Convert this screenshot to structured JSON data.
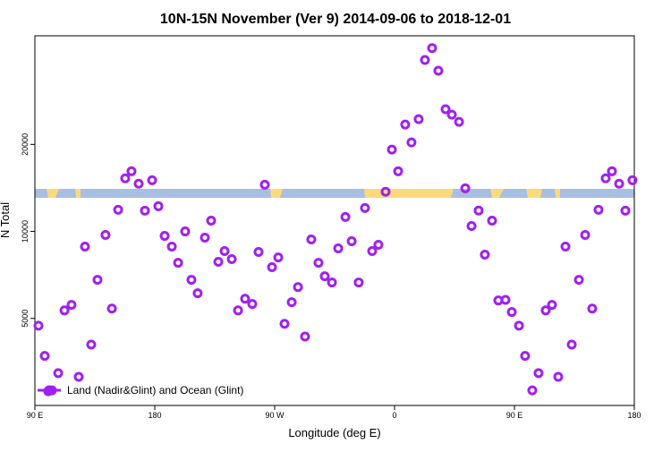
{
  "chart_data": {
    "type": "scatter",
    "title": "10N-15N November (Ver 9)   2014-09-06 to 2018-12-01",
    "xlabel": "Longitude (deg E)",
    "ylabel": "N Total",
    "log_y": true,
    "legend": "bottom-left",
    "xlim": [
      90,
      540
    ],
    "ylim": [
      2500,
      47500
    ],
    "xticks": [
      {
        "value": 90,
        "label": "90 E"
      },
      180,
      {
        "value": 270,
        "label": "90 W"
      },
      {
        "value": 360,
        "label": "0"
      },
      {
        "value": 450,
        "label": "90 E"
      },
      {
        "value": 540,
        "label": "180"
      }
    ],
    "yticks": [
      5000,
      10000,
      20000
    ],
    "series": [
      {
        "name": "Land (Nadir&Glint) and Ocean (Glint)",
        "color": "#a020f0",
        "x": [
          92.7,
          97.4,
          100,
          102.8,
          107.5,
          112.2,
          117.5,
          122.9,
          127.6,
          132.3,
          137,
          143,
          147.8,
          152.5,
          157.8,
          162.5,
          167.9,
          172.6,
          178,
          182.7,
          187.4,
          192.8,
          197.5,
          202.8,
          207.5,
          212.2,
          217.6,
          222.3,
          227.7,
          232.4,
          237.8,
          242.5,
          247.8,
          253.2,
          257.9,
          262.6,
          268,
          272.7,
          277.4,
          282.8,
          287.5,
          292.8,
          297.5,
          302.9,
          307.6,
          313,
          317.7,
          323.1,
          327.8,
          333.1,
          337.8,
          343.2,
          347.9,
          353.3,
          358,
          362.7,
          368,
          372.7,
          378.1,
          382.8,
          388.2,
          392.9,
          398.3,
          403,
          408.4,
          413.1,
          417.8,
          423.1,
          427.8,
          433.2,
          437.9,
          443.3,
          448,
          453.4,
          458,
          463.4,
          468.1,
          473.5,
          478.2,
          482.9,
          488.3,
          493,
          498.4,
          503.1,
          508.4,
          513.1,
          518.5,
          523.2,
          528.6,
          533.3,
          538.6
        ],
        "values": [
          4720,
          3710,
          2800,
          2820,
          3235,
          5330,
          5570,
          3140,
          8860,
          4060,
          6800,
          9720,
          5410,
          11880,
          15260,
          16150,
          14620,
          11800,
          15030,
          12220,
          9650,
          8860,
          7790,
          10000,
          6800,
          6110,
          9520,
          10900,
          7850,
          8550,
          8020,
          5330,
          5850,
          5610,
          8490,
          14510,
          7520,
          8130,
          4790,
          5690,
          6420,
          4330,
          9380,
          7790,
          7000,
          6660,
          8740,
          11220,
          9250,
          6660,
          12050,
          8550,
          8990,
          13710,
          19190,
          16150,
          23430,
          20310,
          24450,
          39170,
          43050,
          35970,
          26470,
          25350,
          23930,
          14100,
          10440,
          11810,
          8310,
          10900,
          5770,
          5800,
          5260,
          4720,
          3710,
          2820,
          3235,
          5330,
          5570,
          3140,
          8860,
          4060,
          6800,
          9720,
          5410,
          11880,
          15260,
          16150,
          14620,
          11800,
          15030
        ]
      }
    ]
  }
}
